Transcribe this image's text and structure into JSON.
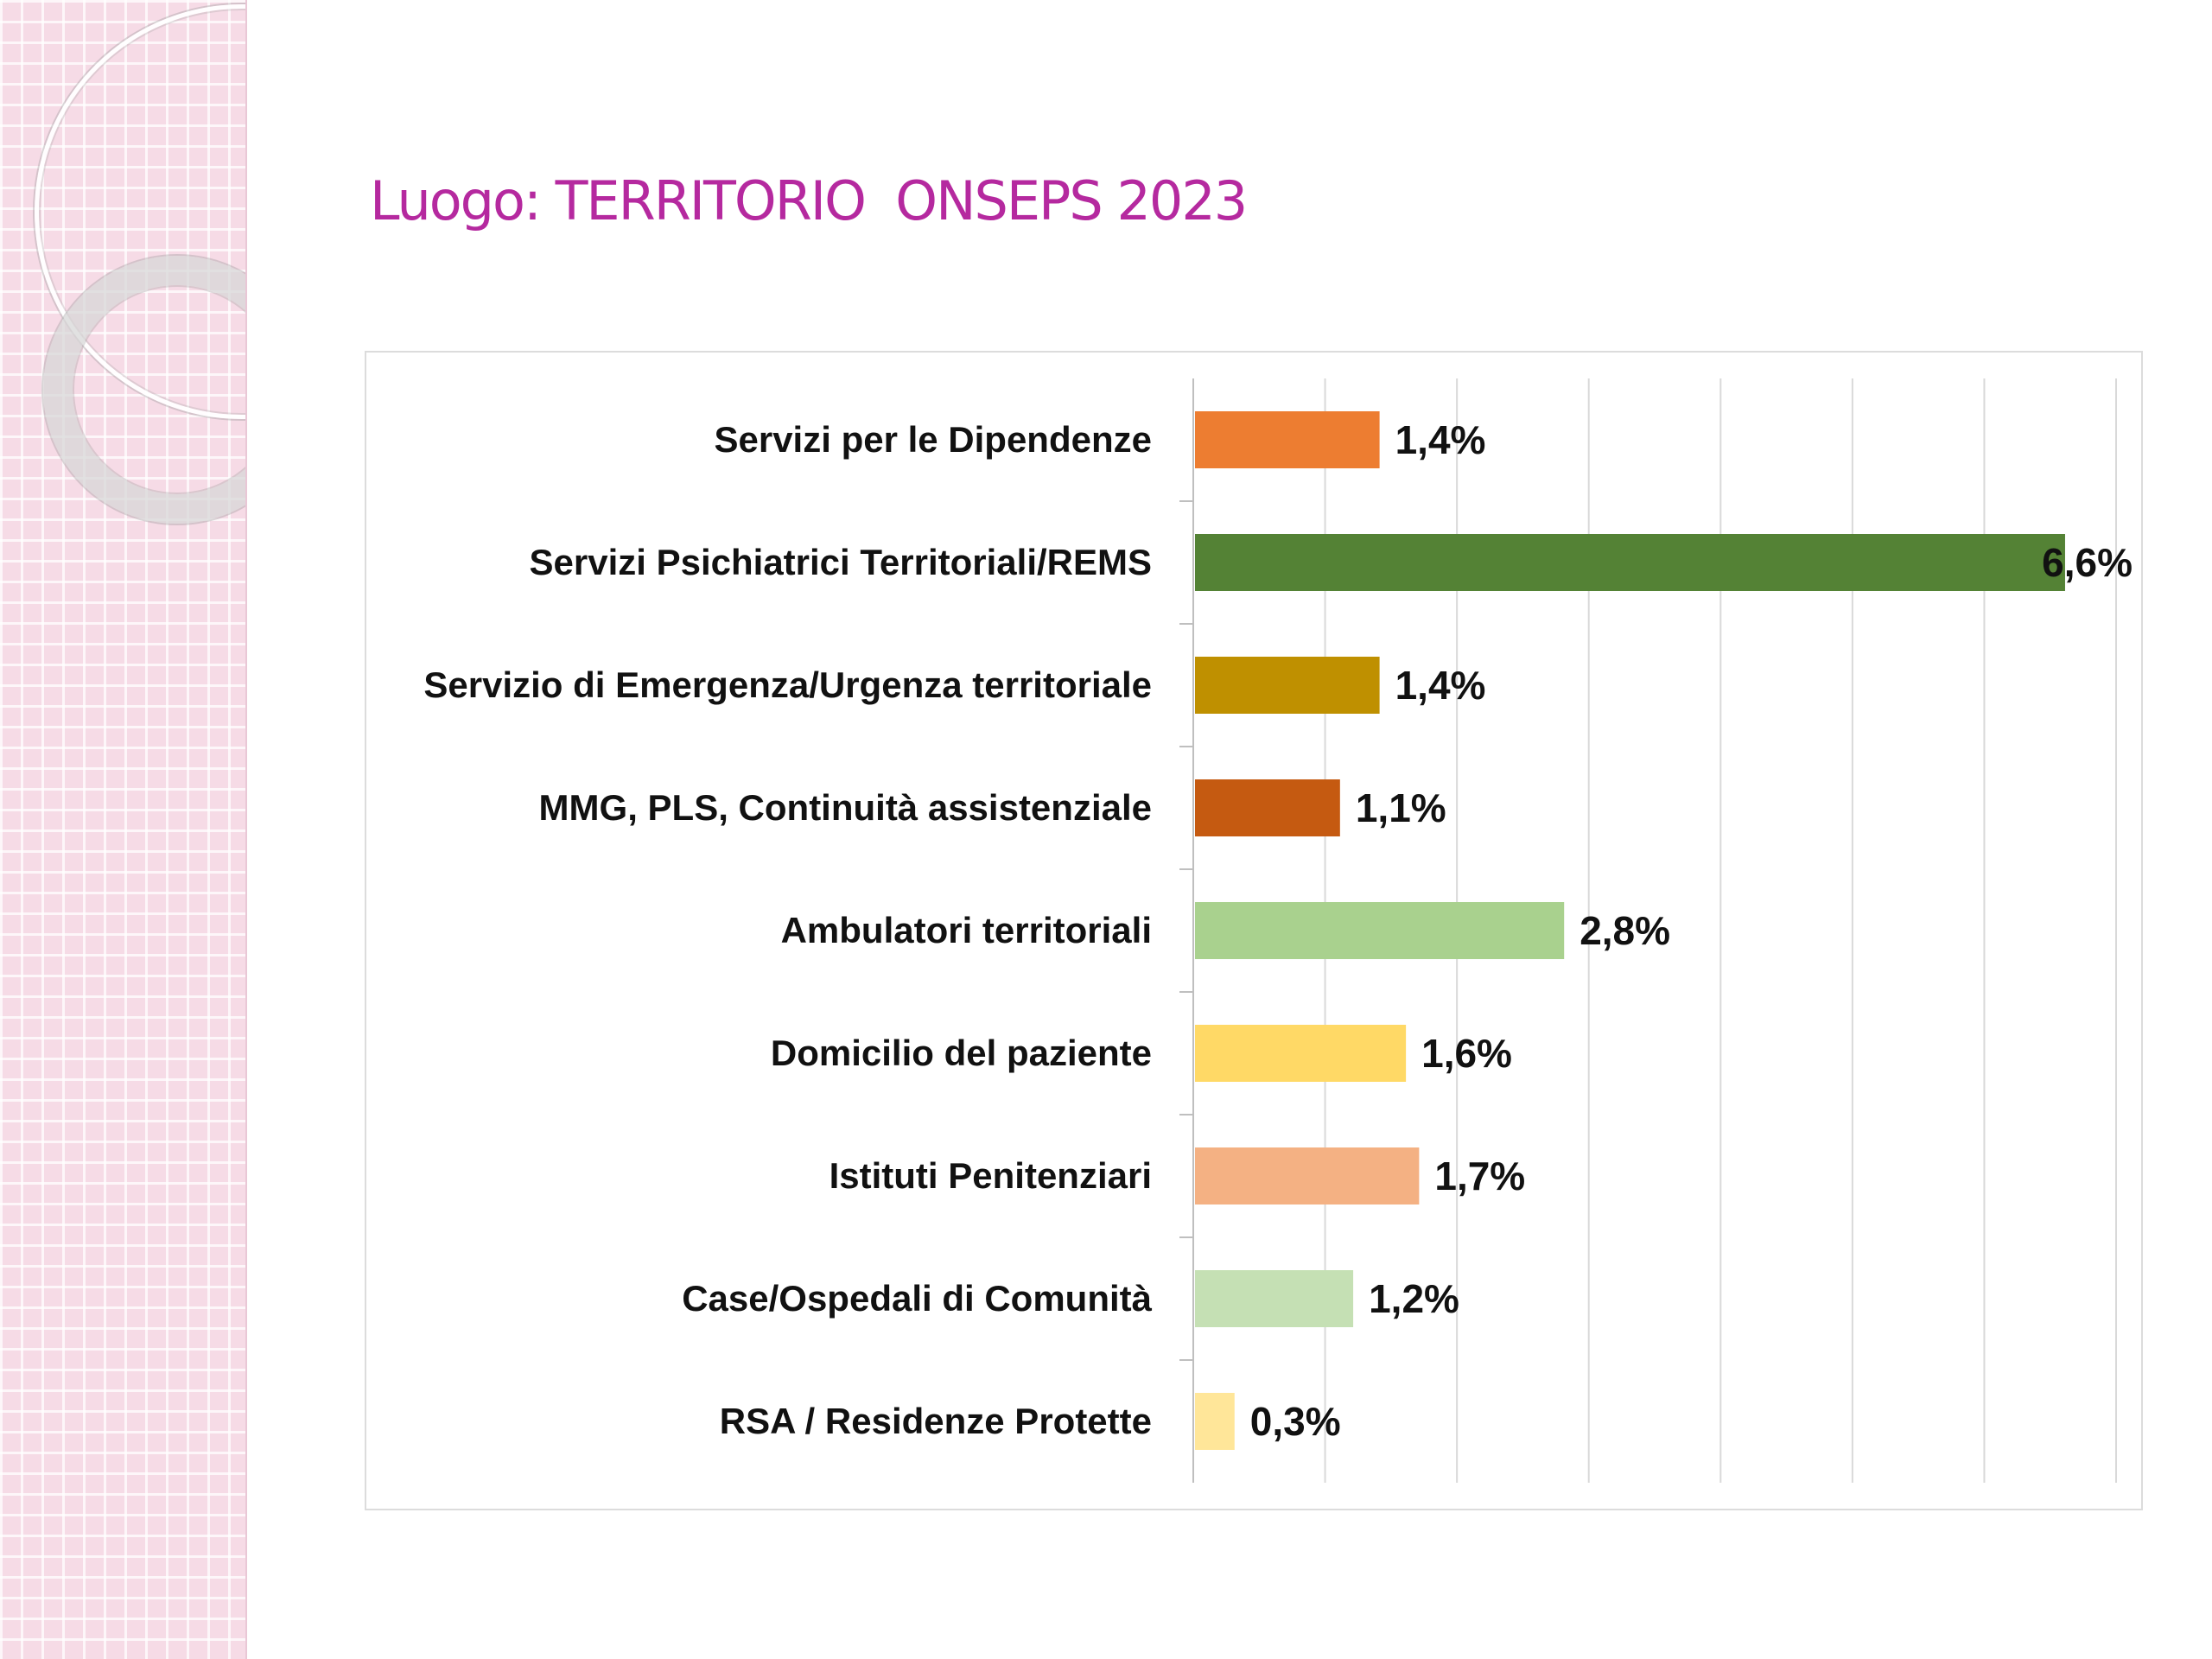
{
  "slide": {
    "title": "Luogo: TERRITORIO  ONSEPS 2023"
  },
  "chart_data": {
    "type": "bar",
    "orientation": "horizontal",
    "title": "",
    "xlabel": "",
    "ylabel": "",
    "xlim": [
      0,
      7
    ],
    "grid": "vertical",
    "categories": [
      "Servizi per le Dipendenze",
      "Servizi Psichiatrici Territoriali/REMS",
      "Servizio di Emergenza/Urgenza territoriale",
      "MMG, PLS, Continuità assistenziale",
      "Ambulatori territoriali",
      "Domicilio del paziente",
      "Istituti Penitenziari",
      "Case/Ospedali di Comunità",
      "RSA / Residenze Protette"
    ],
    "values": [
      1.4,
      6.6,
      1.4,
      1.1,
      2.8,
      1.6,
      1.7,
      1.2,
      0.3
    ],
    "labels": [
      "1,4%",
      "6,6%",
      "1,4%",
      "1,1%",
      "2,8%",
      "1,6%",
      "1,7%",
      "1,2%",
      "0,3%"
    ],
    "colors": [
      "#ed7d31",
      "#548235",
      "#bf9000",
      "#c55a11",
      "#a9d18e",
      "#ffd966",
      "#f4b183",
      "#c5e0b4",
      "#ffe699"
    ]
  }
}
